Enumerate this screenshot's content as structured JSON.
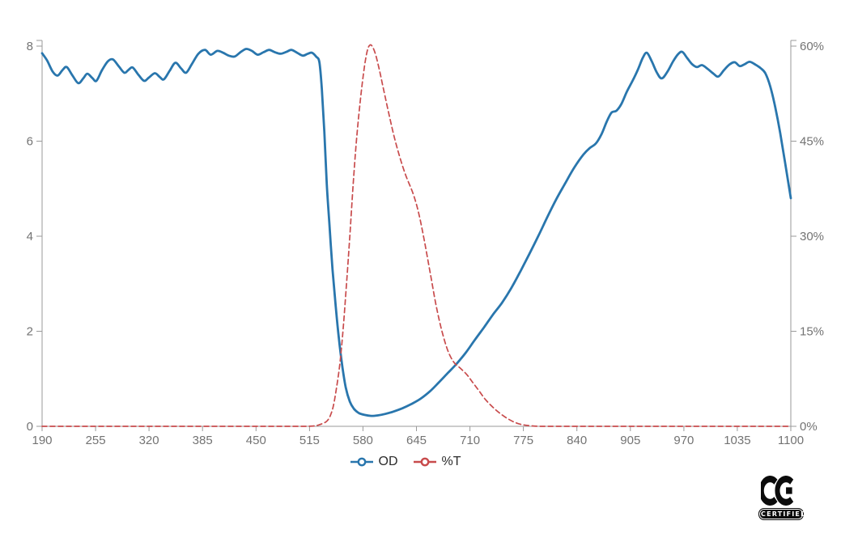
{
  "chart_data": {
    "type": "line",
    "title": "",
    "xlabel": "",
    "ylabel_left": "",
    "ylabel_right": "",
    "grid": false,
    "legend_position": "bottom",
    "x_axis": {
      "range": [
        190,
        1100
      ],
      "ticks": [
        190,
        255,
        320,
        385,
        450,
        515,
        580,
        645,
        710,
        775,
        840,
        905,
        970,
        1035,
        1100
      ]
    },
    "y_axis_left": {
      "range": [
        0,
        8
      ],
      "ticks": [
        0,
        2,
        4,
        6,
        8
      ],
      "tick_labels": [
        "0",
        "2",
        "4",
        "6",
        "8"
      ]
    },
    "y_axis_right": {
      "range": [
        0,
        60
      ],
      "ticks": [
        0,
        15,
        30,
        45,
        60
      ],
      "tick_labels": [
        "0%",
        "15%",
        "30%",
        "45%",
        "60%"
      ]
    },
    "style": {
      "axis_color": "#9a9a9a",
      "tick_label_color": "#737373",
      "legend_text_color": "#2b2b2b",
      "background": "#ffffff"
    },
    "series": [
      {
        "name": "OD",
        "axis": "left",
        "color": "#2976ad",
        "style": "solid",
        "points": [
          [
            190,
            7.85
          ],
          [
            196,
            7.7
          ],
          [
            203,
            7.46
          ],
          [
            209,
            7.38
          ],
          [
            215,
            7.5
          ],
          [
            220,
            7.56
          ],
          [
            227,
            7.38
          ],
          [
            234,
            7.22
          ],
          [
            240,
            7.32
          ],
          [
            245,
            7.42
          ],
          [
            251,
            7.33
          ],
          [
            256,
            7.27
          ],
          [
            263,
            7.5
          ],
          [
            270,
            7.68
          ],
          [
            276,
            7.72
          ],
          [
            283,
            7.58
          ],
          [
            290,
            7.44
          ],
          [
            295,
            7.5
          ],
          [
            300,
            7.55
          ],
          [
            307,
            7.4
          ],
          [
            314,
            7.27
          ],
          [
            320,
            7.34
          ],
          [
            327,
            7.43
          ],
          [
            333,
            7.35
          ],
          [
            338,
            7.3
          ],
          [
            345,
            7.48
          ],
          [
            352,
            7.65
          ],
          [
            359,
            7.53
          ],
          [
            365,
            7.44
          ],
          [
            372,
            7.62
          ],
          [
            380,
            7.84
          ],
          [
            388,
            7.92
          ],
          [
            395,
            7.82
          ],
          [
            403,
            7.9
          ],
          [
            410,
            7.86
          ],
          [
            417,
            7.8
          ],
          [
            424,
            7.78
          ],
          [
            431,
            7.87
          ],
          [
            438,
            7.94
          ],
          [
            445,
            7.9
          ],
          [
            452,
            7.82
          ],
          [
            459,
            7.87
          ],
          [
            466,
            7.92
          ],
          [
            473,
            7.87
          ],
          [
            480,
            7.84
          ],
          [
            487,
            7.88
          ],
          [
            493,
            7.92
          ],
          [
            500,
            7.86
          ],
          [
            507,
            7.8
          ],
          [
            513,
            7.84
          ],
          [
            518,
            7.86
          ],
          [
            523,
            7.78
          ],
          [
            527,
            7.66
          ],
          [
            530,
            7.1
          ],
          [
            533,
            6.2
          ],
          [
            536,
            5.1
          ],
          [
            539,
            4.3
          ],
          [
            543,
            3.3
          ],
          [
            547,
            2.5
          ],
          [
            551,
            1.8
          ],
          [
            555,
            1.25
          ],
          [
            559,
            0.82
          ],
          [
            564,
            0.52
          ],
          [
            569,
            0.37
          ],
          [
            575,
            0.28
          ],
          [
            582,
            0.24
          ],
          [
            590,
            0.22
          ],
          [
            598,
            0.23
          ],
          [
            607,
            0.26
          ],
          [
            617,
            0.31
          ],
          [
            628,
            0.38
          ],
          [
            639,
            0.47
          ],
          [
            650,
            0.58
          ],
          [
            661,
            0.73
          ],
          [
            672,
            0.92
          ],
          [
            683,
            1.12
          ],
          [
            694,
            1.32
          ],
          [
            705,
            1.55
          ],
          [
            716,
            1.82
          ],
          [
            727,
            2.08
          ],
          [
            738,
            2.35
          ],
          [
            749,
            2.6
          ],
          [
            760,
            2.9
          ],
          [
            771,
            3.25
          ],
          [
            782,
            3.62
          ],
          [
            793,
            4.0
          ],
          [
            804,
            4.4
          ],
          [
            815,
            4.78
          ],
          [
            826,
            5.12
          ],
          [
            837,
            5.45
          ],
          [
            848,
            5.72
          ],
          [
            856,
            5.86
          ],
          [
            863,
            5.95
          ],
          [
            870,
            6.15
          ],
          [
            876,
            6.4
          ],
          [
            882,
            6.6
          ],
          [
            888,
            6.64
          ],
          [
            894,
            6.78
          ],
          [
            901,
            7.05
          ],
          [
            908,
            7.28
          ],
          [
            914,
            7.5
          ],
          [
            920,
            7.75
          ],
          [
            925,
            7.86
          ],
          [
            931,
            7.68
          ],
          [
            937,
            7.45
          ],
          [
            943,
            7.32
          ],
          [
            950,
            7.46
          ],
          [
            957,
            7.68
          ],
          [
            963,
            7.83
          ],
          [
            968,
            7.88
          ],
          [
            974,
            7.75
          ],
          [
            980,
            7.62
          ],
          [
            986,
            7.56
          ],
          [
            992,
            7.6
          ],
          [
            999,
            7.52
          ],
          [
            1006,
            7.42
          ],
          [
            1012,
            7.36
          ],
          [
            1019,
            7.5
          ],
          [
            1026,
            7.62
          ],
          [
            1032,
            7.66
          ],
          [
            1038,
            7.58
          ],
          [
            1044,
            7.62
          ],
          [
            1050,
            7.67
          ],
          [
            1057,
            7.61
          ],
          [
            1063,
            7.54
          ],
          [
            1069,
            7.43
          ],
          [
            1075,
            7.15
          ],
          [
            1081,
            6.72
          ],
          [
            1087,
            6.18
          ],
          [
            1093,
            5.55
          ],
          [
            1100,
            4.8
          ]
        ]
      },
      {
        "name": "%T",
        "axis": "right",
        "color": "#c84b4c",
        "style": "dashed",
        "points": [
          [
            190,
            0
          ],
          [
            230,
            0
          ],
          [
            270,
            0
          ],
          [
            310,
            0
          ],
          [
            350,
            0
          ],
          [
            390,
            0
          ],
          [
            430,
            0
          ],
          [
            470,
            0
          ],
          [
            495,
            0
          ],
          [
            510,
            0
          ],
          [
            520,
            0.05
          ],
          [
            526,
            0.2
          ],
          [
            531,
            0.45
          ],
          [
            536,
            0.8
          ],
          [
            540,
            1.6
          ],
          [
            544,
            3.2
          ],
          [
            548,
            6.2
          ],
          [
            552,
            10
          ],
          [
            556,
            15.5
          ],
          [
            560,
            22.5
          ],
          [
            564,
            30
          ],
          [
            568,
            38
          ],
          [
            572,
            45
          ],
          [
            576,
            50.5
          ],
          [
            580,
            55
          ],
          [
            583,
            57.8
          ],
          [
            586,
            59.6
          ],
          [
            589,
            60.2
          ],
          [
            592,
            59.8
          ],
          [
            595,
            58.8
          ],
          [
            599,
            56.8
          ],
          [
            604,
            53.8
          ],
          [
            610,
            50.2
          ],
          [
            617,
            46.2
          ],
          [
            624,
            42.8
          ],
          [
            632,
            39.6
          ],
          [
            641,
            36.7
          ],
          [
            648,
            33.5
          ],
          [
            655,
            29
          ],
          [
            662,
            24
          ],
          [
            669,
            19
          ],
          [
            676,
            15
          ],
          [
            683,
            12
          ],
          [
            690,
            10.2
          ],
          [
            698,
            9.2
          ],
          [
            706,
            8.2
          ],
          [
            713,
            7
          ],
          [
            721,
            5.6
          ],
          [
            729,
            4.2
          ],
          [
            738,
            3
          ],
          [
            747,
            2
          ],
          [
            756,
            1.2
          ],
          [
            765,
            0.6
          ],
          [
            774,
            0.25
          ],
          [
            784,
            0.08
          ],
          [
            795,
            0
          ],
          [
            815,
            0
          ],
          [
            840,
            0
          ],
          [
            870,
            0
          ],
          [
            900,
            0
          ],
          [
            930,
            0
          ],
          [
            960,
            0
          ],
          [
            990,
            0
          ],
          [
            1020,
            0
          ],
          [
            1060,
            0
          ],
          [
            1100,
            0
          ]
        ]
      }
    ],
    "legend": {
      "items": [
        {
          "label": "OD"
        },
        {
          "label": "%T"
        }
      ]
    }
  },
  "footer": {
    "ce_mark": {
      "letters": "CE",
      "caption": "CERTIFIED",
      "color": "#0b0b0b"
    }
  }
}
